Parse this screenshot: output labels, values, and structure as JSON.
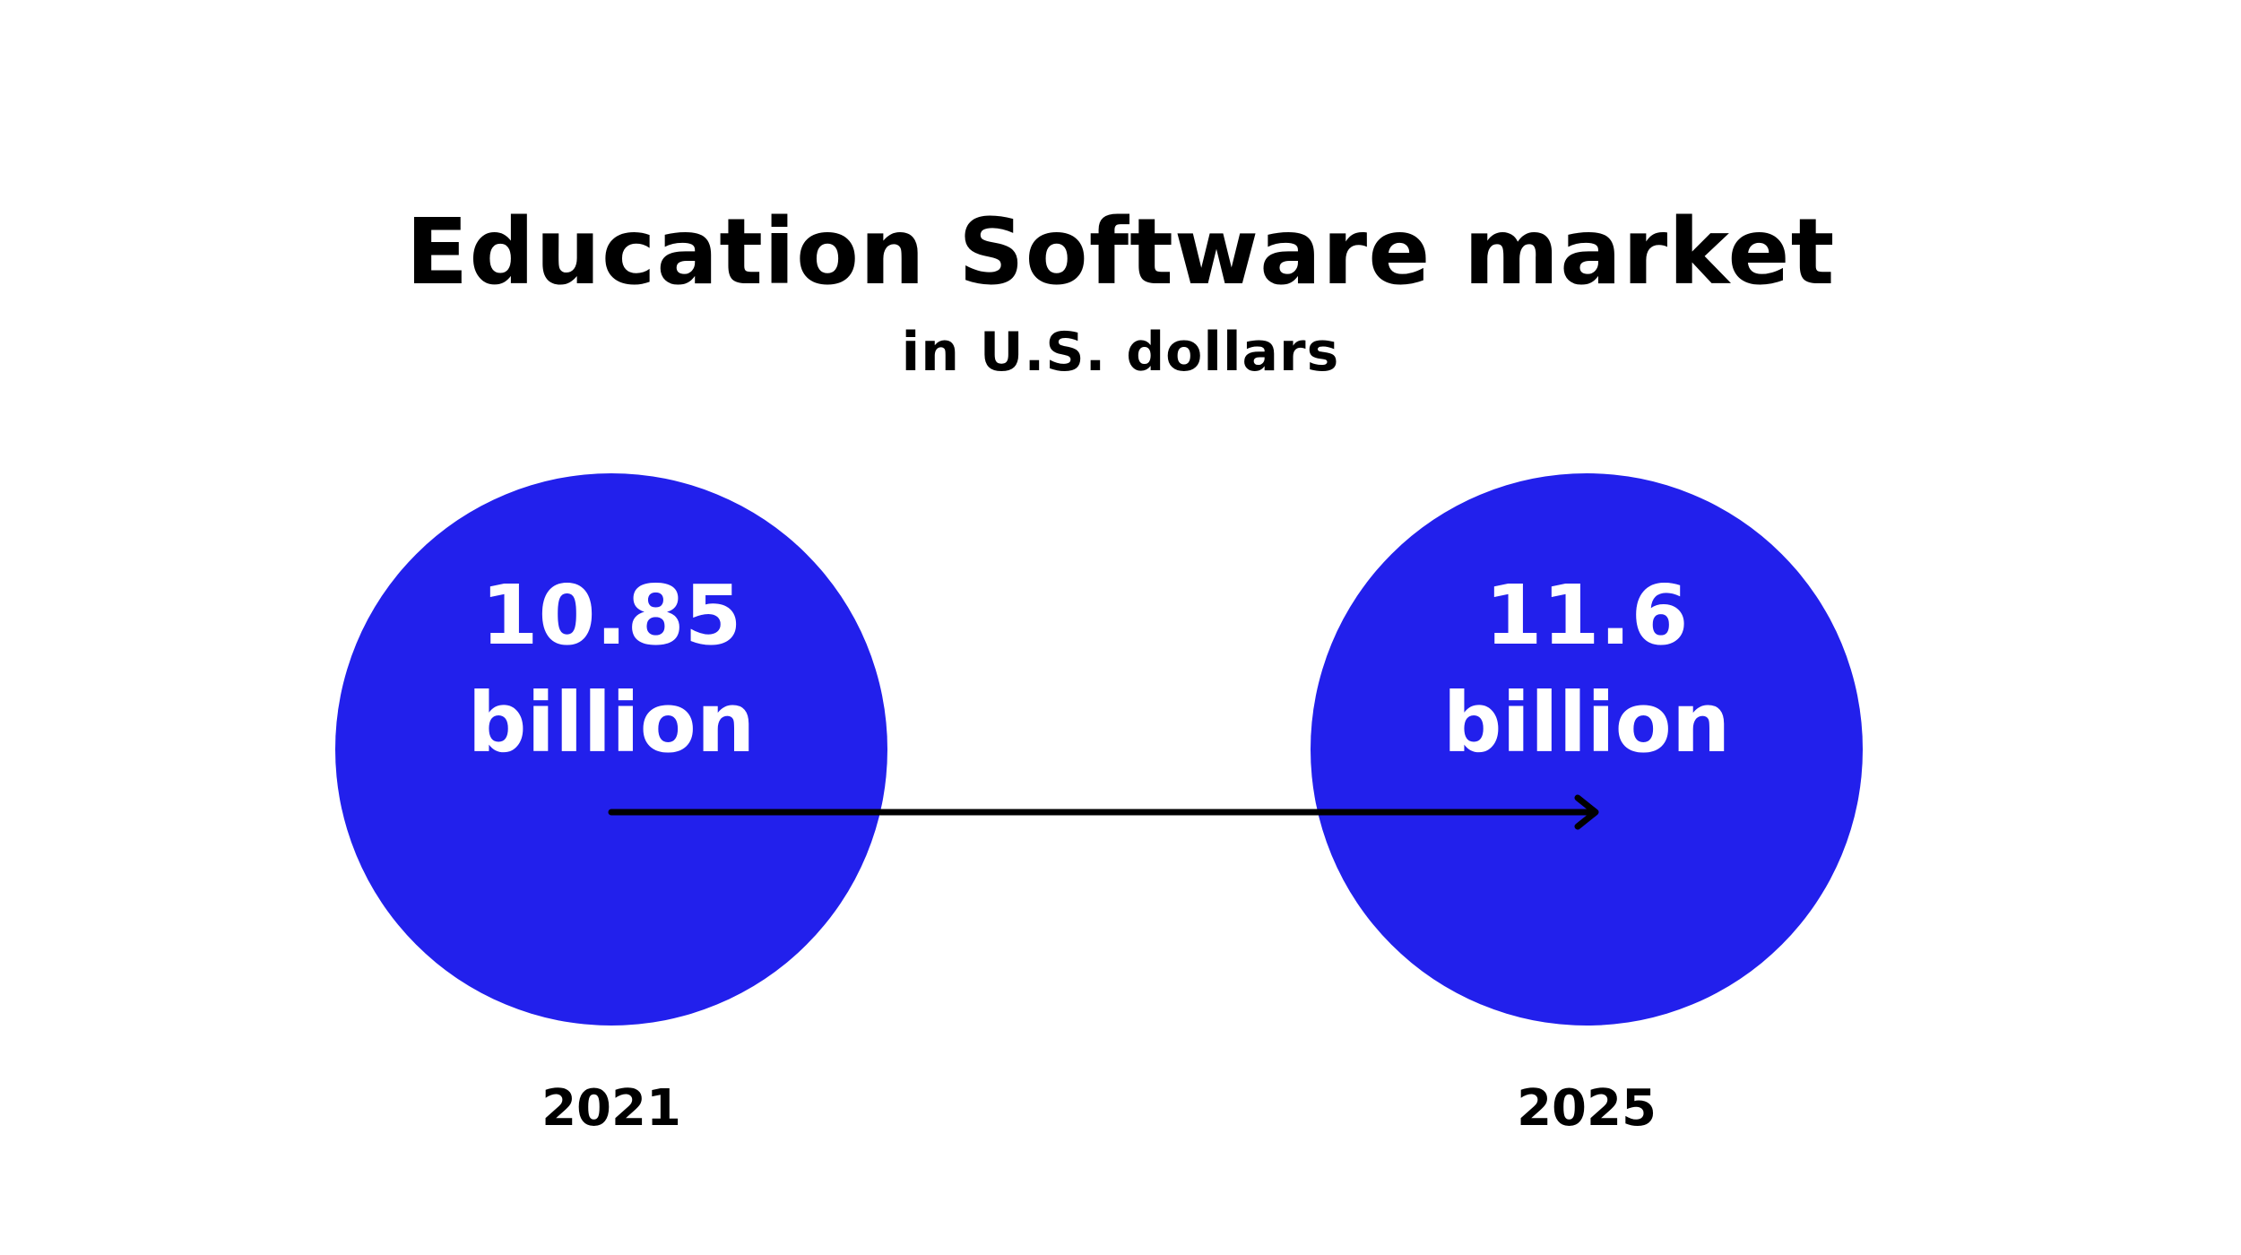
{
  "colors": {
    "circle": "#2220EC",
    "value_text": "#FFFFFF",
    "arrow": "#000000",
    "text": "#000000"
  },
  "chart_data": {
    "type": "bubble-comparison",
    "title": "Education Software market",
    "subtitle": "in U.S. dollars",
    "categories": [
      "2021",
      "2025"
    ],
    "values": [
      10.85,
      11.6
    ],
    "value_labels": [
      {
        "number": "10.85",
        "unit": "billion"
      },
      {
        "number": "11.6",
        "unit": "billion"
      }
    ],
    "annotation": "arrow from 2021 to 2025",
    "legend": "none",
    "grid": false
  }
}
